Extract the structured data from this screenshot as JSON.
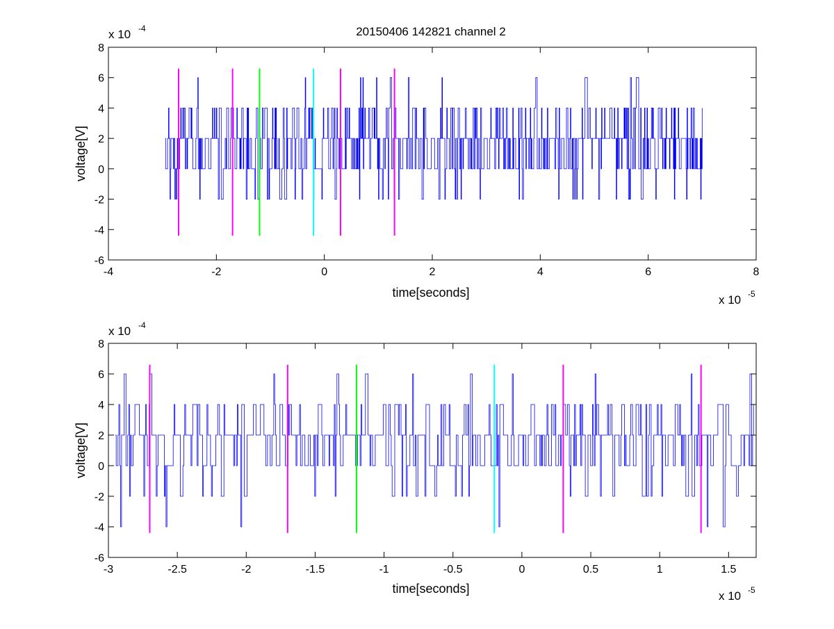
{
  "chart_data": [
    {
      "type": "line",
      "title": "20150406 142821 channel 2",
      "xlabel": "time[seconds]",
      "ylabel": "voltage[V]",
      "x_exponent": "x 10",
      "x_exponent_power": "-5",
      "y_exponent": "x 10",
      "y_exponent_power": "-4",
      "xlim": [
        -4,
        8
      ],
      "ylim": [
        -6,
        8
      ],
      "xticks": [
        "-4",
        "-2",
        "0",
        "2",
        "4",
        "6",
        "8"
      ],
      "yticks": [
        "-6",
        "-4",
        "-2",
        "0",
        "2",
        "4",
        "6",
        "8"
      ],
      "signal": {
        "x_start": -2.95,
        "x_end": 7.0,
        "levels": [
          -2,
          0,
          2,
          4,
          6
        ],
        "baseline": 2,
        "color": "#0000ff"
      },
      "markers": [
        {
          "x": -2.7,
          "color": "#ff00ff",
          "y": [
            -4.4,
            6.6
          ]
        },
        {
          "x": -1.7,
          "color": "#ff00ff",
          "y": [
            -4.4,
            6.6
          ]
        },
        {
          "x": -1.2,
          "color": "#00ff00",
          "y": [
            -4.4,
            6.6
          ]
        },
        {
          "x": -0.2,
          "color": "#00ffff",
          "y": [
            -4.4,
            6.6
          ]
        },
        {
          "x": 0.3,
          "color": "#ff00ff",
          "y": [
            -4.4,
            6.6
          ]
        },
        {
          "x": 1.3,
          "color": "#ff00ff",
          "y": [
            -4.4,
            6.6
          ]
        }
      ],
      "grid": false
    },
    {
      "type": "line",
      "title": "",
      "xlabel": "time[seconds]",
      "ylabel": "voltage[V]",
      "x_exponent": "x 10",
      "x_exponent_power": "-5",
      "y_exponent": "x 10",
      "y_exponent_power": "-4",
      "xlim": [
        -3.0,
        1.7
      ],
      "ylim": [
        -6,
        8
      ],
      "xticks": [
        "-3",
        "-2.5",
        "-2",
        "-1.5",
        "-1",
        "-0.5",
        "0",
        "0.5",
        "1",
        "1.5"
      ],
      "yticks": [
        "-6",
        "-4",
        "-2",
        "0",
        "2",
        "4",
        "6",
        "8"
      ],
      "signal": {
        "x_start": -2.95,
        "x_end": 1.7,
        "levels": [
          -4,
          -2,
          0,
          2,
          4,
          6
        ],
        "baseline": 2,
        "color": "#0000ff"
      },
      "markers": [
        {
          "x": -2.7,
          "color": "#ff00ff",
          "y": [
            -4.4,
            6.6
          ]
        },
        {
          "x": -1.7,
          "color": "#ff00ff",
          "y": [
            -4.4,
            6.6
          ]
        },
        {
          "x": -1.2,
          "color": "#00ff00",
          "y": [
            -4.4,
            6.6
          ]
        },
        {
          "x": -0.2,
          "color": "#00ffff",
          "y": [
            -4.4,
            6.6
          ]
        },
        {
          "x": 0.3,
          "color": "#ff00ff",
          "y": [
            -4.4,
            6.6
          ]
        },
        {
          "x": 1.3,
          "color": "#ff00ff",
          "y": [
            -4.4,
            6.6
          ]
        }
      ],
      "grid": false
    }
  ]
}
